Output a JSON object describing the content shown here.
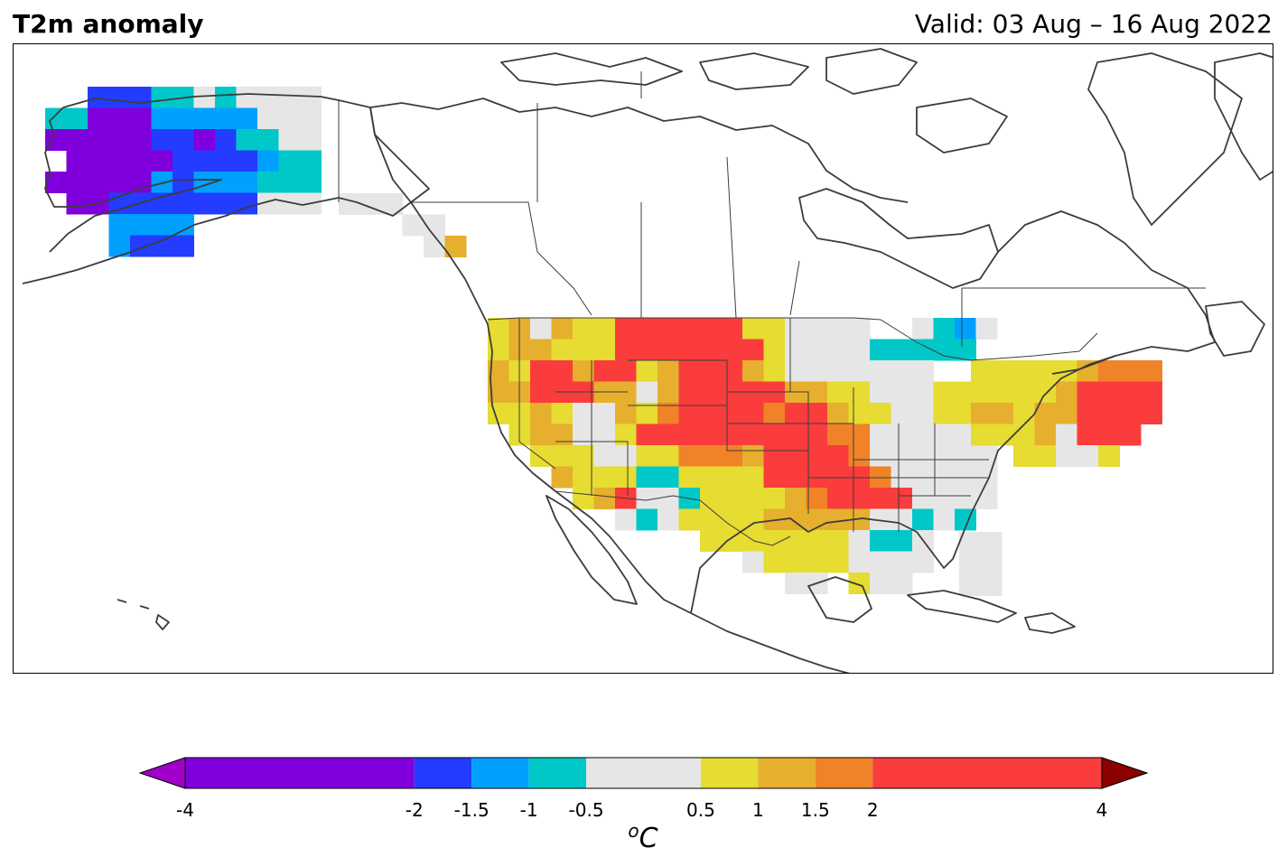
{
  "header": {
    "title": "T2m anomaly",
    "valid": "Valid: 03 Aug – 16 Aug 2022"
  },
  "colorbar": {
    "unit_base": "C",
    "unit_sup": "o",
    "levels": [
      -4,
      -2,
      -1.5,
      -1,
      -0.5,
      0.5,
      1,
      1.5,
      2,
      4
    ],
    "tick_labels": [
      "-4",
      "-2",
      "-1.5",
      "-1",
      "-0.5",
      "0.5",
      "1",
      "1.5",
      "2",
      "4"
    ],
    "colors": [
      "#8000dd",
      "#233cff",
      "#00a0ff",
      "#00c8c8",
      "#e6e6e6",
      "#e6dc32",
      "#e6af2d",
      "#f08228",
      "#fa3c3c"
    ],
    "under_color": "#a000c8",
    "over_color": "#8b0000"
  },
  "map": {
    "region": "North America",
    "coastline_color": "#3c3c3c",
    "border_color": "#3c3c3c"
  }
}
